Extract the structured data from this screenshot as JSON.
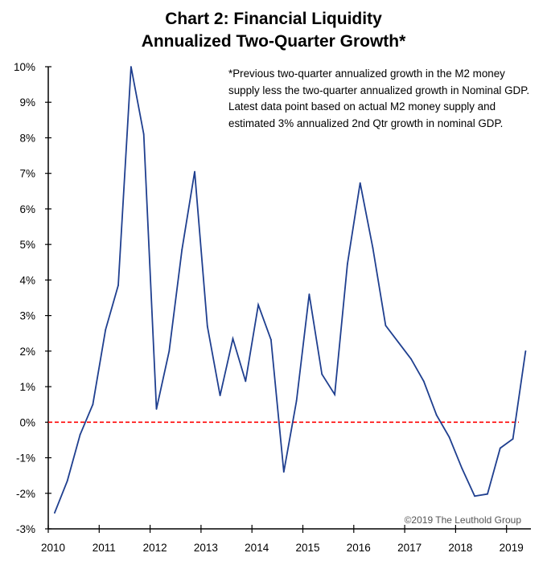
{
  "chart_data": {
    "type": "line",
    "title": "Chart 2: Financial Liquidity",
    "subtitle": "Annualized Two-Quarter Growth*",
    "note": "*Previous two-quarter annualized growth in the M2 money supply less the two-quarter annualized growth in Nominal GDP. Latest data point based on actual M2 money supply and estimated 3% annualized 2nd Qtr growth in nominal GDP.",
    "credit": "©2019 The Leuthold Group",
    "xlabel": "",
    "ylabel": "",
    "xlim": [
      2010,
      2019.5
    ],
    "ylim": [
      -3,
      10
    ],
    "x_ticks": [
      "2010",
      "2011",
      "2012",
      "2013",
      "2014",
      "2015",
      "2016",
      "2017",
      "2018",
      "2019"
    ],
    "y_ticks": [
      "10%",
      "9%",
      "8%",
      "7%",
      "6%",
      "5%",
      "4%",
      "3%",
      "2%",
      "1%",
      "0%",
      "-1%",
      "-2%",
      "-3%"
    ],
    "grid": false,
    "reference_line": {
      "y": 0,
      "style": "dashed",
      "color": "#ff0000"
    },
    "series_color": "#1f3f8f",
    "series": [
      {
        "x": [
          2010.125,
          2010.375,
          2010.625,
          2010.875,
          2011.125,
          2011.375,
          2011.625,
          2011.875,
          2012.125,
          2012.375,
          2012.625,
          2012.875,
          2013.125,
          2013.375,
          2013.625,
          2013.875,
          2014.125,
          2014.375,
          2014.625,
          2014.875,
          2015.125,
          2015.375,
          2015.625,
          2015.875,
          2016.125,
          2016.375,
          2016.625,
          2016.875,
          2017.125,
          2017.375,
          2017.625,
          2017.875,
          2018.125,
          2018.375,
          2018.625,
          2018.875,
          2019.125,
          2019.375
        ],
        "values": [
          -2.55,
          -1.65,
          -0.35,
          0.5,
          2.6,
          3.85,
          10.0,
          8.1,
          0.37,
          2.0,
          4.85,
          7.05,
          2.7,
          0.75,
          2.35,
          1.15,
          3.3,
          2.32,
          -1.4,
          0.6,
          3.6,
          1.35,
          0.78,
          4.45,
          6.73,
          4.9,
          2.72,
          2.25,
          1.78,
          1.15,
          0.2,
          -0.42,
          -1.3,
          -2.08,
          -2.02,
          -0.73,
          -0.47,
          2.0
        ]
      }
    ]
  }
}
